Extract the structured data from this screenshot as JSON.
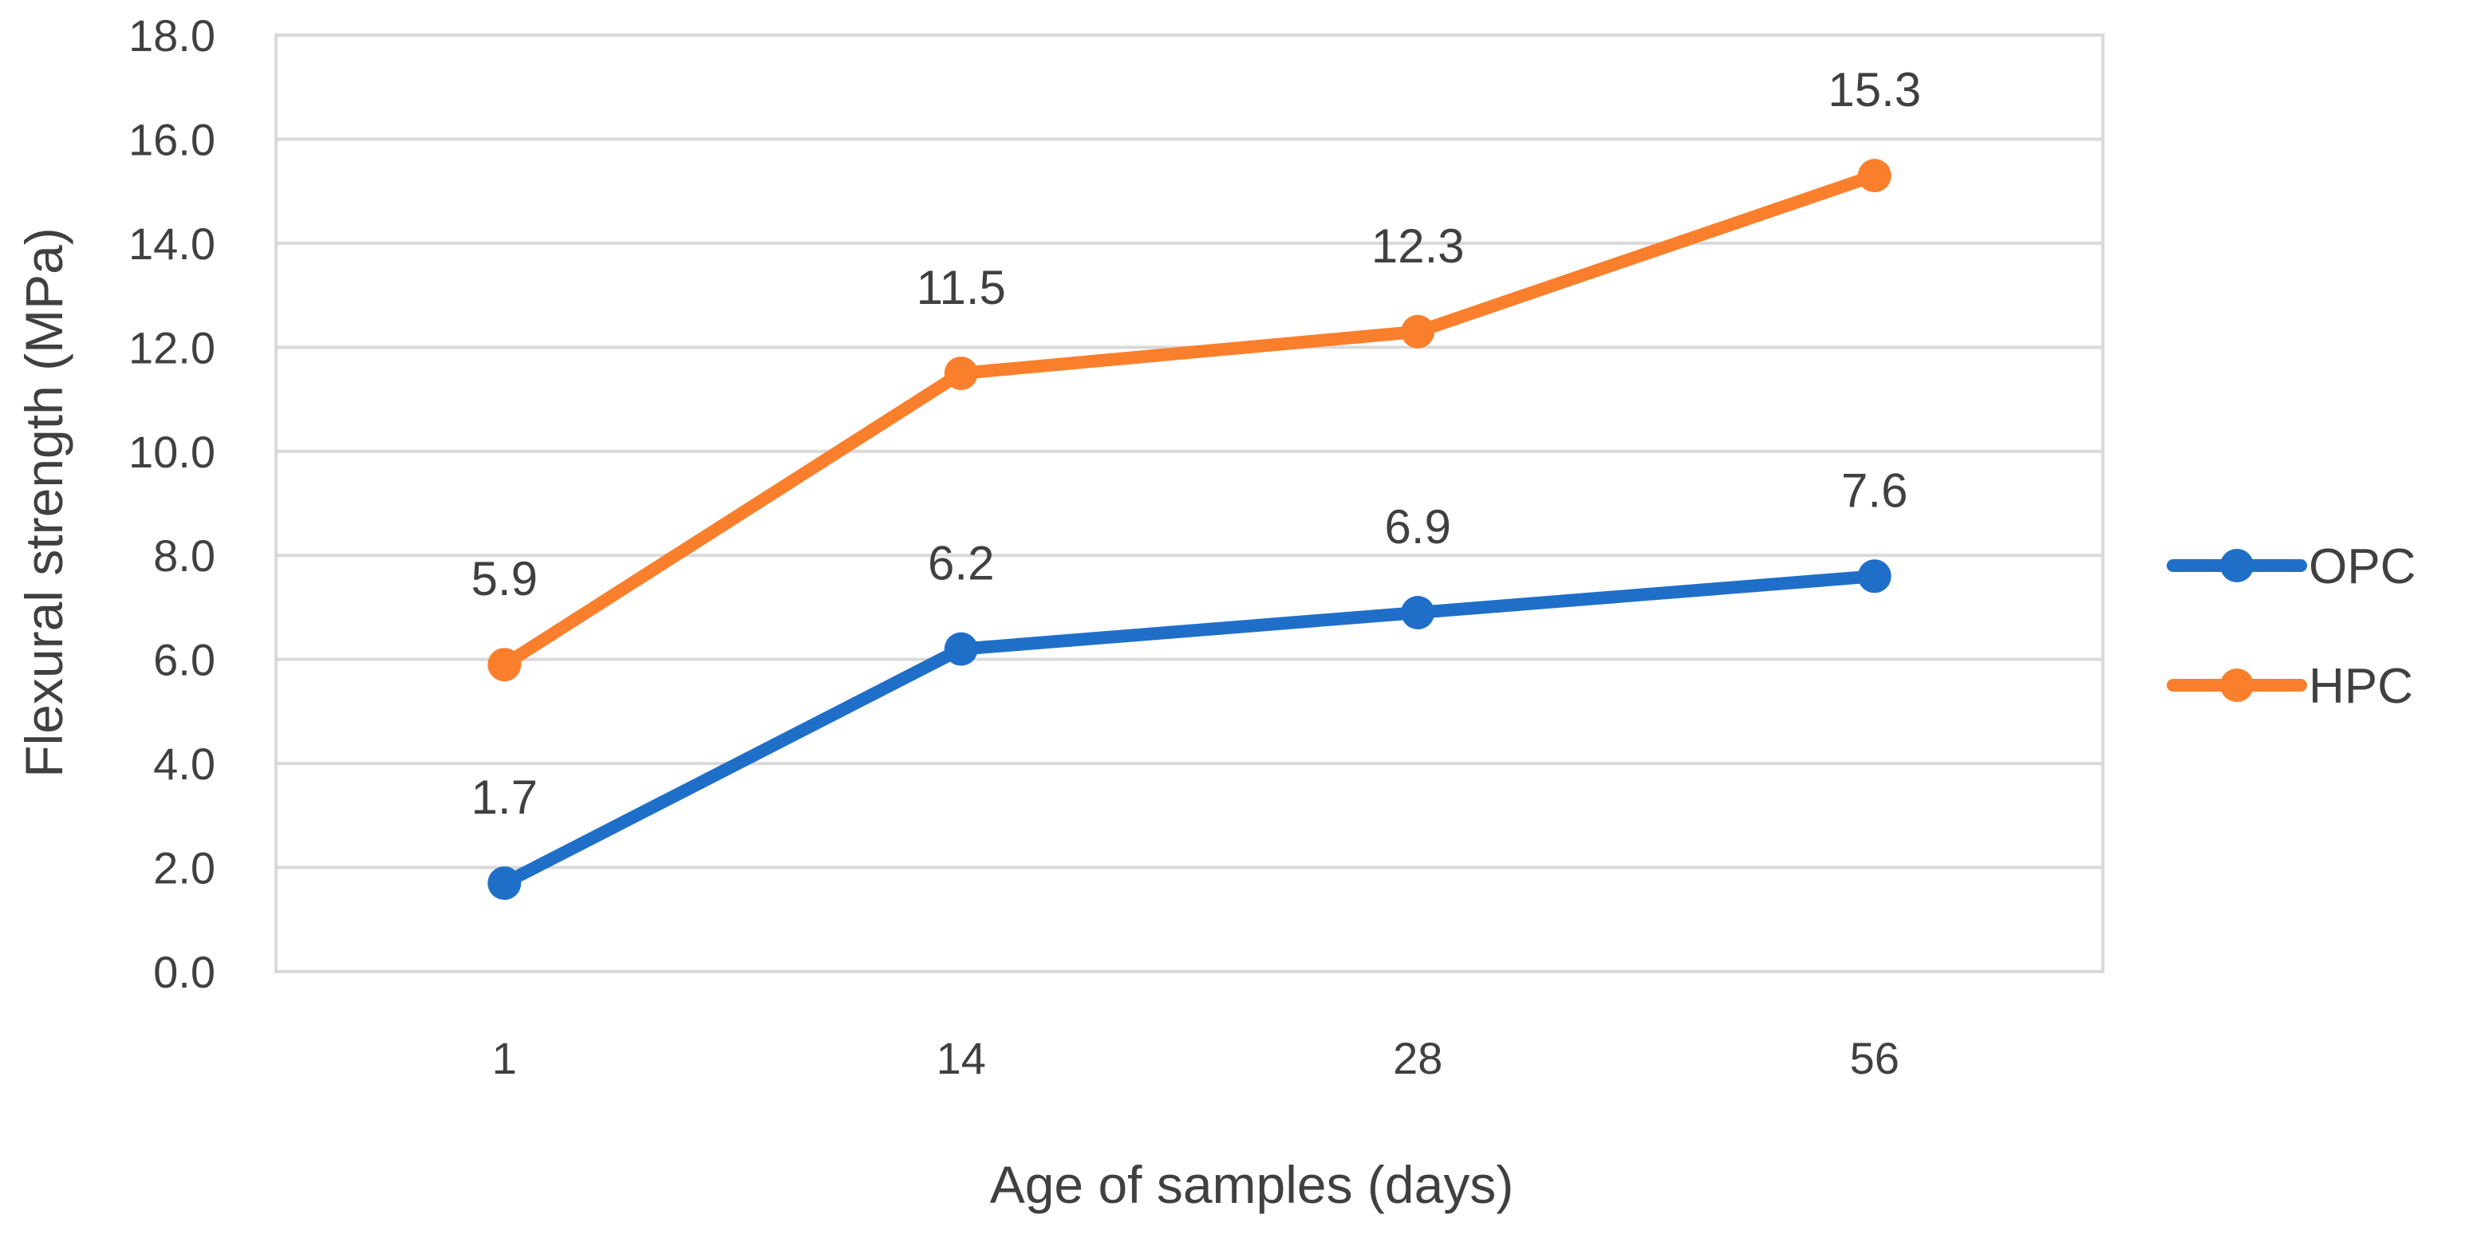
{
  "chart_data": {
    "type": "line",
    "title": "",
    "xlabel": "Age of samples (days)",
    "ylabel": "Flexural strength (MPa)",
    "categories": [
      "1",
      "14",
      "28",
      "56"
    ],
    "ylim": [
      0,
      18
    ],
    "yticks": [
      "0.0",
      "2.0",
      "4.0",
      "6.0",
      "8.0",
      "10.0",
      "12.0",
      "14.0",
      "16.0",
      "18.0"
    ],
    "grid": true,
    "legend_position": "right",
    "series": [
      {
        "name": "OPC",
        "color": "#1F6FC9",
        "values": [
          1.7,
          6.2,
          6.9,
          7.6
        ],
        "labels": [
          "1.7",
          "6.2",
          "6.9",
          "7.6"
        ]
      },
      {
        "name": "HPC",
        "color": "#FA7F2C",
        "values": [
          5.9,
          11.5,
          12.3,
          15.3
        ],
        "labels": [
          "5.9",
          "11.5",
          "12.3",
          "15.3"
        ]
      }
    ]
  }
}
